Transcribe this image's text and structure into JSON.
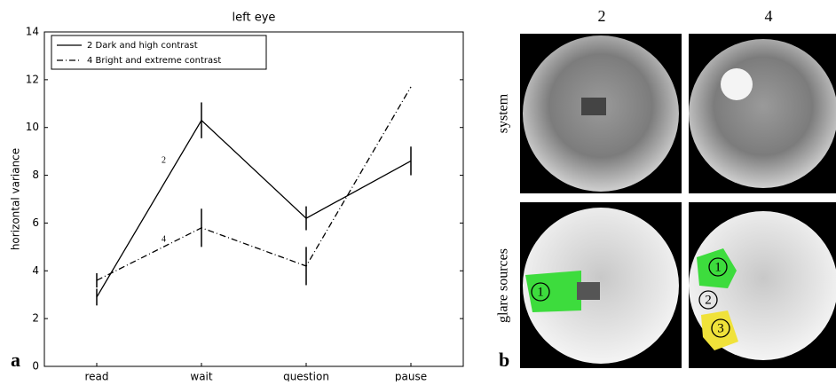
{
  "chart_data": {
    "type": "line",
    "title": "left eye",
    "ylabel": "horizontal variance",
    "categories": [
      "read",
      "wait",
      "question",
      "pause"
    ],
    "series": [
      {
        "name": "2 Dark and high contrast",
        "color": "#000000",
        "dash": "solid",
        "values": [
          2.9,
          10.3,
          6.2,
          8.6
        ],
        "errors": [
          0.35,
          0.75,
          0.5,
          0.6
        ]
      },
      {
        "name": "4 Bright and extreme contrast",
        "color": "#000000",
        "dash": "dashdot",
        "values": [
          3.6,
          5.8,
          4.2,
          11.7
        ],
        "errors": [
          0.3,
          0.8,
          0.8,
          null
        ]
      }
    ],
    "annotations": [
      "2",
      "4"
    ],
    "ylim": [
      0,
      14
    ],
    "yticks": [
      0,
      2,
      4,
      6,
      8,
      10,
      12,
      14
    ],
    "legend": "upper left",
    "grid": false
  },
  "panels": {
    "label_a": "a",
    "label_b": "b",
    "columns": [
      "2",
      "4"
    ],
    "rows": [
      "system",
      "glare sources"
    ],
    "markers": {
      "left": [
        "1"
      ],
      "right": [
        "1",
        "2",
        "3"
      ]
    }
  }
}
